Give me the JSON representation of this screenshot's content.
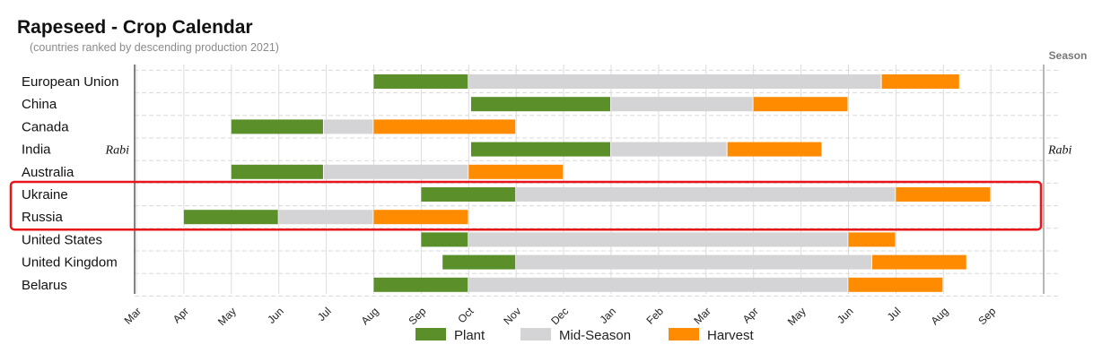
{
  "title": "Rapeseed - Crop Calendar",
  "subtitle": "(countries ranked by descending production 2021)",
  "season_label": "Season",
  "chart_data": {
    "type": "gantt",
    "title": "Rapeseed - Crop Calendar",
    "subtitle": "(countries ranked by descending production 2021)",
    "x_ticks": [
      "Mar",
      "Apr",
      "May",
      "Jun",
      "Jul",
      "Aug",
      "Sep",
      "Oct",
      "Nov",
      "Dec",
      "Jan",
      "Feb",
      "Mar",
      "Apr",
      "May",
      "Jun",
      "Jul",
      "Aug",
      "Sep"
    ],
    "x_unit_note": "months from 1 Mar of first year; 18 = 1 Sep of following year",
    "colors": {
      "Plant": "#5a8f29",
      "Mid-Season": "#d4d3d6",
      "Harvest": "#ff8c00"
    },
    "legend": [
      {
        "name": "Plant",
        "color": "#5a8f29"
      },
      {
        "name": "Mid-Season",
        "color": "#d4d3d6"
      },
      {
        "name": "Harvest",
        "color": "#ff8c00"
      }
    ],
    "highlight_rows": [
      "Ukraine",
      "Russia"
    ],
    "rows": [
      {
        "country": "European Union",
        "season": "",
        "plant": [
          5,
          7
        ],
        "mid": [
          7,
          15.7
        ],
        "harvest": [
          15.7,
          17.35
        ]
      },
      {
        "country": "China",
        "season": "",
        "plant": [
          7.05,
          10
        ],
        "mid": [
          10,
          13
        ],
        "harvest": [
          13,
          15
        ]
      },
      {
        "country": "Canada",
        "season": "",
        "plant": [
          2,
          3.95
        ],
        "mid": [
          3.95,
          5
        ],
        "harvest": [
          5,
          8
        ]
      },
      {
        "country": "India",
        "season": "Rabi",
        "plant": [
          7.05,
          10
        ],
        "mid": [
          10,
          12.45
        ],
        "harvest": [
          12.45,
          14.45
        ]
      },
      {
        "country": "Australia",
        "season": "",
        "plant": [
          2,
          3.95
        ],
        "mid": [
          3.95,
          7
        ],
        "harvest": [
          7,
          9
        ]
      },
      {
        "country": "Ukraine",
        "season": "",
        "plant": [
          6,
          8
        ],
        "mid": [
          8,
          16
        ],
        "harvest": [
          16,
          18
        ]
      },
      {
        "country": "Russia",
        "season": "",
        "plant": [
          1,
          3
        ],
        "mid": [
          3,
          5
        ],
        "harvest": [
          5,
          7
        ]
      },
      {
        "country": "United States",
        "season": "",
        "plant": [
          6,
          7
        ],
        "mid": [
          7,
          15
        ],
        "harvest": [
          15,
          16
        ]
      },
      {
        "country": "United Kingdom",
        "season": "",
        "plant": [
          6.45,
          8
        ],
        "mid": [
          8,
          15.5
        ],
        "harvest": [
          15.5,
          17.5
        ]
      },
      {
        "country": "Belarus",
        "season": "",
        "plant": [
          5,
          7
        ],
        "mid": [
          7,
          15
        ],
        "harvest": [
          15,
          17
        ]
      }
    ]
  }
}
